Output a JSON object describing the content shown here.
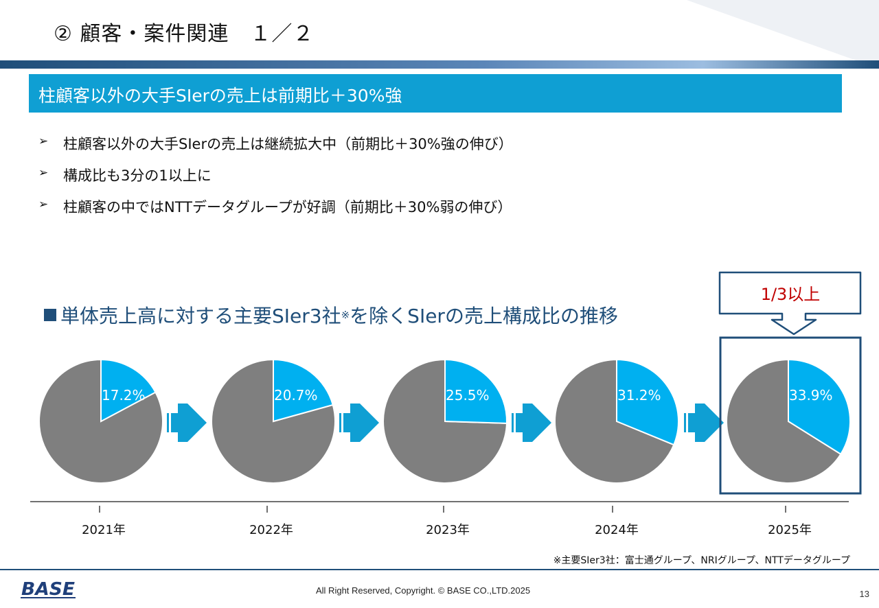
{
  "slide": {
    "title": "② 顧客・案件関連　１／２",
    "banner": "柱顧客以外の大手SIerの売上は前期比＋30%強",
    "bullets": [
      "柱顧客以外の大手SIerの売上は継続拡大中（前期比＋30%強の伸び）",
      "構成比も3分の1以上に",
      "柱顧客の中ではNTTデータグループが好調（前期比＋30%弱の伸び）"
    ],
    "bullet_marker": "➢",
    "section_heading": "単体売上高に対する主要SIer3社",
    "section_heading_mark": "※",
    "section_heading_tail": "を除くSIerの売上構成比の推移",
    "callout": "1/3以上",
    "footnote": "※主要SIer3社：富士通グループ、NRIグループ、NTTデータグループ",
    "logo": "BASE",
    "copyright": "All Right Reserved, Copyright. © BASE CO.,LTD.2025",
    "page_number": "13"
  },
  "colors": {
    "accent": "#0f9fd3",
    "navy": "#1f4e79",
    "pie_highlight": "#00b0f0",
    "pie_rest": "#7f7f7f",
    "arrow": "#0f9fd3",
    "callout_text": "#c00000"
  },
  "chart_data": {
    "type": "pie",
    "title": "単体売上高に対する主要SIer3社※を除くSIerの売上構成比の推移",
    "categories": [
      "2021年",
      "2022年",
      "2023年",
      "2024年",
      "2025年"
    ],
    "values": [
      17.2,
      20.7,
      25.5,
      31.2,
      33.9
    ],
    "labels": [
      "17.2%",
      "20.7%",
      "25.5%",
      "31.2%",
      "33.9%"
    ],
    "unit": "%",
    "highlight": "2025年"
  }
}
